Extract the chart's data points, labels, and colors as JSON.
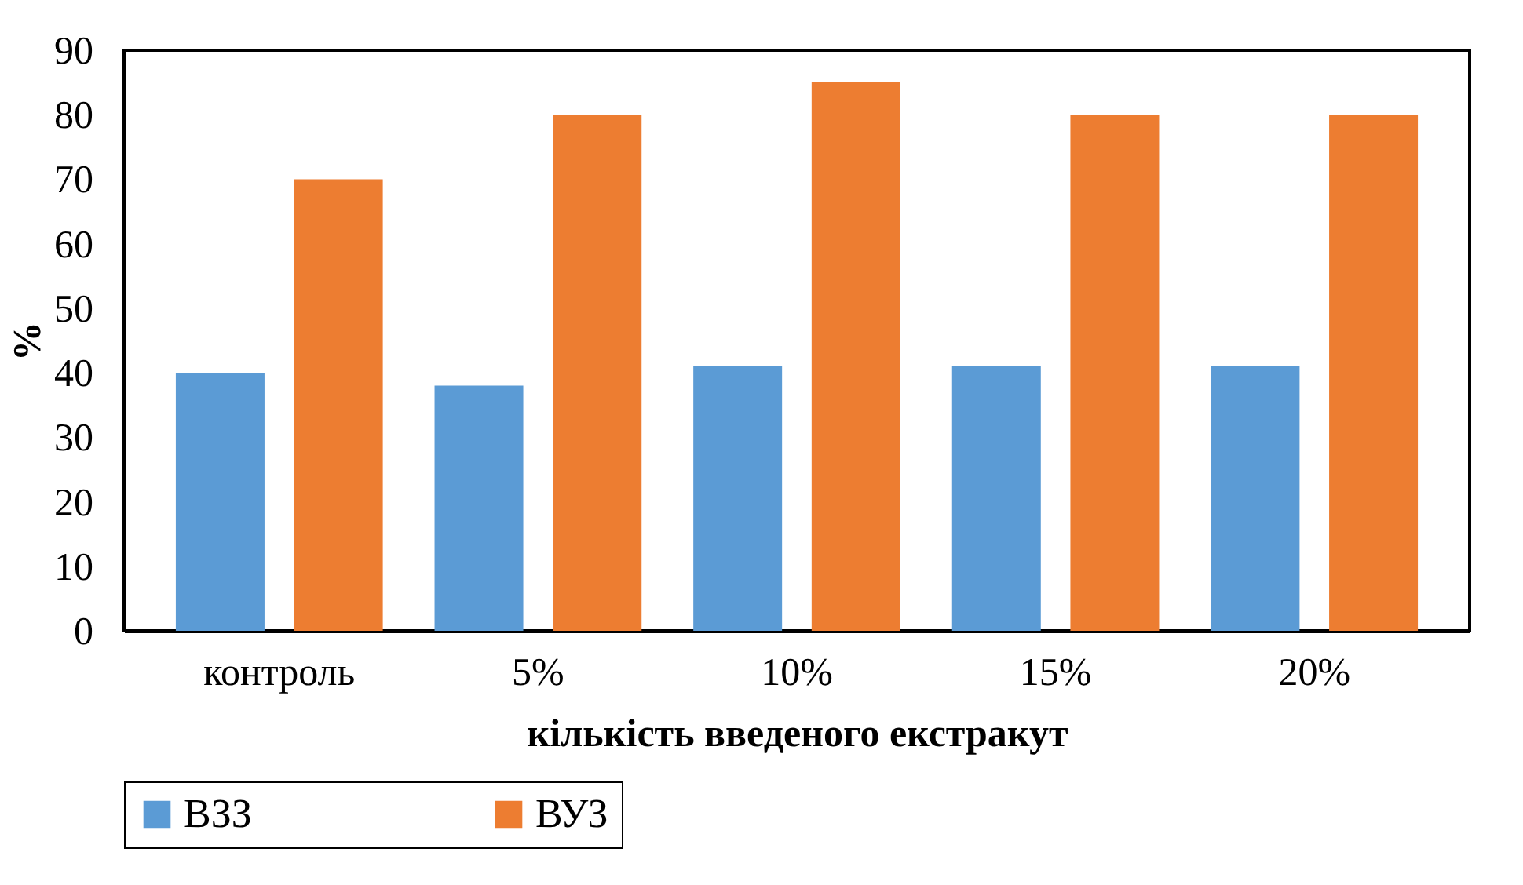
{
  "chart_data": {
    "type": "bar",
    "xlabel": "кількість введеного екстракут",
    "ylabel": "%",
    "categories": [
      "контроль",
      "5%",
      "10%",
      "15%",
      "20%"
    ],
    "series": [
      {
        "name": "ВЗЗ",
        "color": "#5b9bd5",
        "values": [
          40,
          38,
          41,
          41,
          41
        ]
      },
      {
        "name": "ВУЗ",
        "color": "#ed7d31",
        "values": [
          70,
          80,
          85,
          80,
          80
        ]
      }
    ],
    "ylim": [
      0,
      90
    ],
    "yticks": [
      0,
      10,
      20,
      30,
      40,
      50,
      60,
      70,
      80,
      90
    ],
    "grid": false,
    "legend": "bottom"
  }
}
